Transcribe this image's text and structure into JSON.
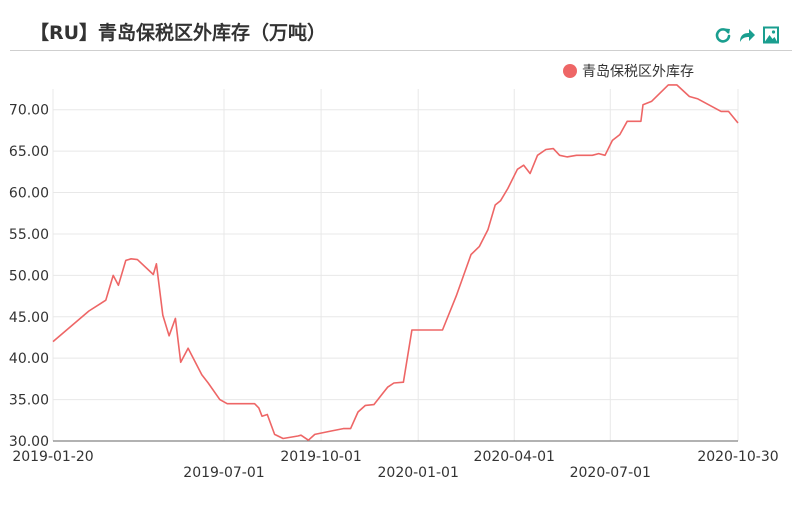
{
  "header": {
    "title": "【RU】青岛保税区外库存（万吨）",
    "tools": [
      {
        "name": "refresh-icon",
        "color": "#1a9e8f"
      },
      {
        "name": "share-icon",
        "color": "#1a9e8f"
      },
      {
        "name": "save-image-icon",
        "color": "#1a9e8f"
      }
    ]
  },
  "chart_data": {
    "type": "line",
    "title": "【RU】青岛保税区外库存（万吨）",
    "xlabel": "",
    "ylabel": "",
    "x_range": [
      "2019-01-20",
      "2020-10-30"
    ],
    "ylim": [
      30,
      72.5
    ],
    "y_ticks": [
      "30.00",
      "35.00",
      "40.00",
      "45.00",
      "50.00",
      "55.00",
      "60.00",
      "65.00",
      "70.00"
    ],
    "x_ticks": [
      {
        "date": "2019-01-20",
        "label": "2019-01-20",
        "row": 1
      },
      {
        "date": "2019-07-01",
        "label": "2019-07-01",
        "row": 2
      },
      {
        "date": "2019-10-01",
        "label": "2019-10-01",
        "row": 1
      },
      {
        "date": "2020-01-01",
        "label": "2020-01-01",
        "row": 2
      },
      {
        "date": "2020-04-01",
        "label": "2020-04-01",
        "row": 1
      },
      {
        "date": "2020-07-01",
        "label": "2020-07-01",
        "row": 2
      },
      {
        "date": "2020-10-30",
        "label": "2020-10-30",
        "row": 1
      }
    ],
    "grid": true,
    "legend_position": "top-right",
    "series": [
      {
        "name": "青岛保税区外库存",
        "color": "#ee6666",
        "points": [
          [
            "2019-01-20",
            42.0
          ],
          [
            "2019-02-23",
            45.7
          ],
          [
            "2019-03-05",
            46.5
          ],
          [
            "2019-03-11",
            47.0
          ],
          [
            "2019-03-18",
            50.0
          ],
          [
            "2019-03-23",
            48.8
          ],
          [
            "2019-03-30",
            51.8
          ],
          [
            "2019-04-04",
            52.0
          ],
          [
            "2019-04-10",
            51.9
          ],
          [
            "2019-04-25",
            50.1
          ],
          [
            "2019-04-28",
            51.4
          ],
          [
            "2019-05-04",
            45.2
          ],
          [
            "2019-05-10",
            42.7
          ],
          [
            "2019-05-16",
            44.8
          ],
          [
            "2019-05-21",
            39.5
          ],
          [
            "2019-05-28",
            41.2
          ],
          [
            "2019-06-10",
            38.0
          ],
          [
            "2019-06-16",
            37.0
          ],
          [
            "2019-06-27",
            35.0
          ],
          [
            "2019-07-04",
            34.5
          ],
          [
            "2019-07-30",
            34.5
          ],
          [
            "2019-08-03",
            34.0
          ],
          [
            "2019-08-06",
            33.0
          ],
          [
            "2019-08-11",
            33.2
          ],
          [
            "2019-08-18",
            30.8
          ],
          [
            "2019-08-26",
            30.3
          ],
          [
            "2019-09-09",
            30.6
          ],
          [
            "2019-09-12",
            30.7
          ],
          [
            "2019-09-19",
            30.1
          ],
          [
            "2019-09-25",
            30.8
          ],
          [
            "2019-10-10",
            31.2
          ],
          [
            "2019-10-22",
            31.5
          ],
          [
            "2019-10-29",
            31.5
          ],
          [
            "2019-11-05",
            33.5
          ],
          [
            "2019-11-12",
            34.3
          ],
          [
            "2019-11-20",
            34.4
          ],
          [
            "2019-12-03",
            36.5
          ],
          [
            "2019-12-09",
            37.0
          ],
          [
            "2019-12-18",
            37.1
          ],
          [
            "2019-12-26",
            43.4
          ],
          [
            "2020-01-24",
            43.4
          ],
          [
            "2020-02-06",
            47.5
          ],
          [
            "2020-02-13",
            50.0
          ],
          [
            "2020-02-20",
            52.5
          ],
          [
            "2020-02-28",
            53.5
          ],
          [
            "2020-03-07",
            55.5
          ],
          [
            "2020-03-14",
            58.5
          ],
          [
            "2020-03-19",
            59.0
          ],
          [
            "2020-03-26",
            60.5
          ],
          [
            "2020-04-04",
            62.8
          ],
          [
            "2020-04-10",
            63.3
          ],
          [
            "2020-04-16",
            62.3
          ],
          [
            "2020-04-23",
            64.5
          ],
          [
            "2020-05-01",
            65.2
          ],
          [
            "2020-05-08",
            65.3
          ],
          [
            "2020-05-14",
            64.5
          ],
          [
            "2020-05-21",
            64.3
          ],
          [
            "2020-05-30",
            64.5
          ],
          [
            "2020-06-14",
            64.5
          ],
          [
            "2020-06-20",
            64.7
          ],
          [
            "2020-06-26",
            64.5
          ],
          [
            "2020-07-03",
            66.3
          ],
          [
            "2020-07-10",
            67.0
          ],
          [
            "2020-07-17",
            68.6
          ],
          [
            "2020-07-30",
            68.6
          ],
          [
            "2020-08-01",
            70.6
          ],
          [
            "2020-08-09",
            71.0
          ],
          [
            "2020-08-25",
            73.0
          ],
          [
            "2020-09-02",
            73.0
          ],
          [
            "2020-09-14",
            71.6
          ],
          [
            "2020-09-22",
            71.3
          ],
          [
            "2020-10-14",
            69.8
          ],
          [
            "2020-10-21",
            69.8
          ],
          [
            "2020-10-30",
            68.4
          ]
        ]
      }
    ]
  }
}
